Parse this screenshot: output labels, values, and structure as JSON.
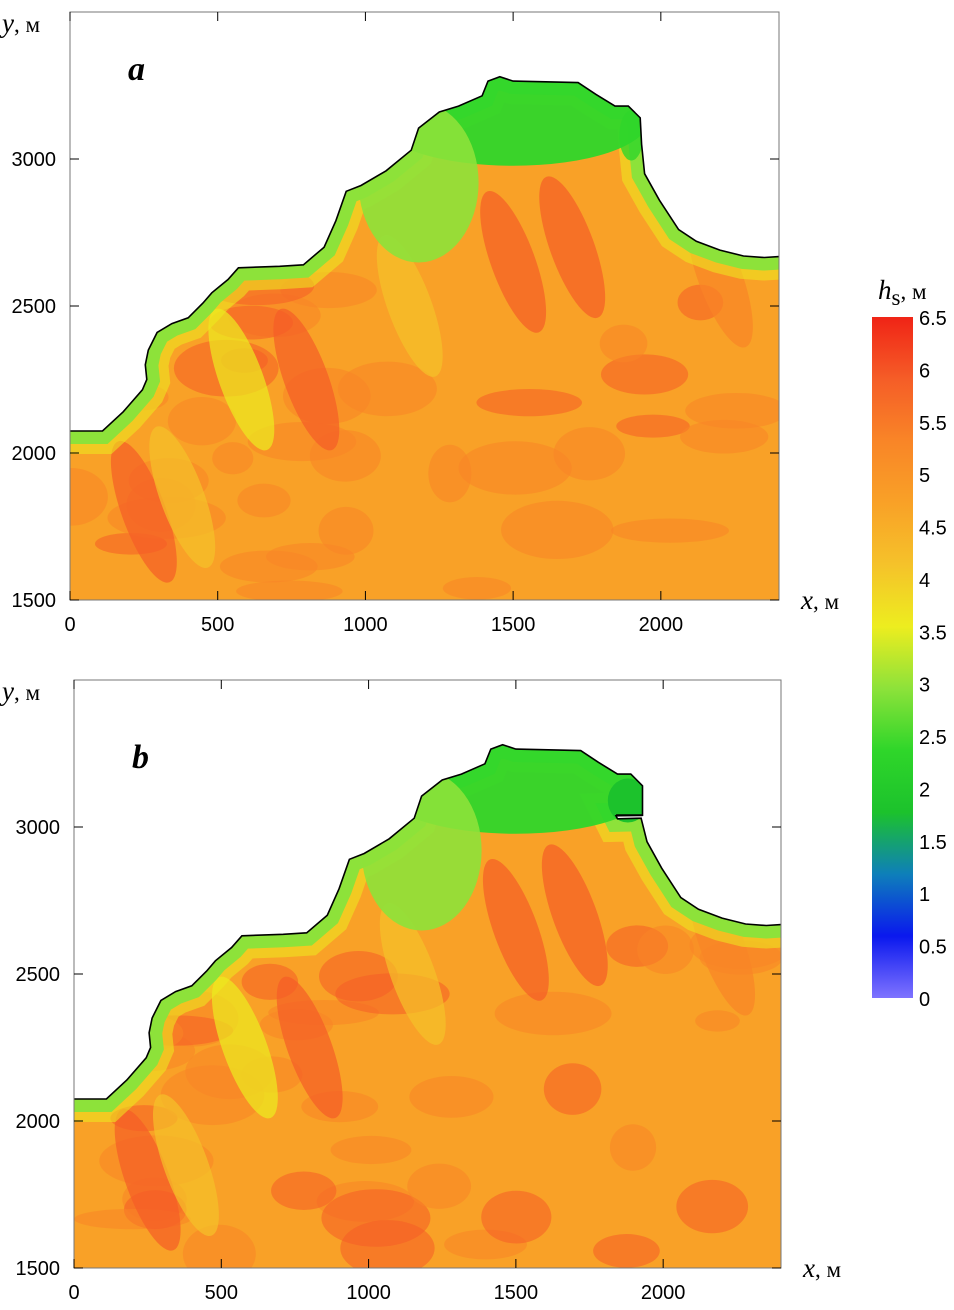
{
  "colors": {
    "scale": [
      "#7f73ff",
      "#0a18ee",
      "#0e7fba",
      "#1cc22c",
      "#2fd62a",
      "#8de23a",
      "#eded1f",
      "#f5c22a",
      "#f9a127",
      "#f98527",
      "#f55d27",
      "#f02416"
    ]
  },
  "chart_data": [
    {
      "type": "heatmap",
      "panel_label": "a",
      "xlabel": "x",
      "xunit": ", м",
      "ylabel": "y",
      "yunit": ", м",
      "xlim": [
        0,
        2400
      ],
      "ylim": [
        1500,
        3500
      ],
      "xticks": [
        "0",
        "500",
        "1000",
        "1500",
        "2000"
      ],
      "yticks": [
        "1500",
        "2000",
        "2500",
        "3000"
      ],
      "coastline": [
        [
          0,
          2075
        ],
        [
          110,
          2075
        ],
        [
          180,
          2140
        ],
        [
          245,
          2215
        ],
        [
          260,
          2250
        ],
        [
          255,
          2300
        ],
        [
          265,
          2350
        ],
        [
          295,
          2410
        ],
        [
          345,
          2440
        ],
        [
          400,
          2460
        ],
        [
          450,
          2510
        ],
        [
          480,
          2545
        ],
        [
          535,
          2590
        ],
        [
          570,
          2630
        ],
        [
          710,
          2635
        ],
        [
          790,
          2640
        ],
        [
          860,
          2700
        ],
        [
          900,
          2790
        ],
        [
          935,
          2890
        ],
        [
          985,
          2910
        ],
        [
          1070,
          2960
        ],
        [
          1155,
          3030
        ],
        [
          1180,
          3105
        ],
        [
          1250,
          3160
        ],
        [
          1315,
          3180
        ],
        [
          1395,
          3215
        ],
        [
          1415,
          3265
        ],
        [
          1455,
          3280
        ],
        [
          1500,
          3265
        ],
        [
          1720,
          3260
        ],
        [
          1780,
          3220
        ],
        [
          1845,
          3180
        ],
        [
          1890,
          3180
        ],
        [
          1930,
          3140
        ],
        [
          1935,
          3050
        ],
        [
          1945,
          2950
        ],
        [
          1995,
          2860
        ],
        [
          2060,
          2760
        ],
        [
          2120,
          2720
        ],
        [
          2200,
          2690
        ],
        [
          2280,
          2670
        ],
        [
          2350,
          2665
        ],
        [
          2400,
          2668
        ]
      ],
      "field_extent_hs": [
        2,
        6.3
      ]
    },
    {
      "type": "heatmap",
      "panel_label": "b",
      "xlabel": "x",
      "xunit": ", м",
      "ylabel": "y",
      "yunit": ", м",
      "xlim": [
        0,
        2400
      ],
      "ylim": [
        1500,
        3500
      ],
      "xticks": [
        "0",
        "500",
        "1000",
        "1500",
        "2000"
      ],
      "yticks": [
        "1500",
        "2000",
        "2500",
        "3000"
      ],
      "coastline": [
        [
          0,
          2075
        ],
        [
          110,
          2075
        ],
        [
          180,
          2140
        ],
        [
          245,
          2215
        ],
        [
          260,
          2250
        ],
        [
          255,
          2300
        ],
        [
          265,
          2350
        ],
        [
          295,
          2410
        ],
        [
          345,
          2440
        ],
        [
          400,
          2460
        ],
        [
          450,
          2510
        ],
        [
          480,
          2545
        ],
        [
          535,
          2590
        ],
        [
          570,
          2630
        ],
        [
          710,
          2635
        ],
        [
          790,
          2640
        ],
        [
          860,
          2700
        ],
        [
          900,
          2790
        ],
        [
          935,
          2890
        ],
        [
          985,
          2910
        ],
        [
          1070,
          2960
        ],
        [
          1155,
          3030
        ],
        [
          1180,
          3105
        ],
        [
          1250,
          3160
        ],
        [
          1315,
          3180
        ],
        [
          1395,
          3215
        ],
        [
          1415,
          3265
        ],
        [
          1455,
          3280
        ],
        [
          1500,
          3265
        ],
        [
          1720,
          3260
        ],
        [
          1780,
          3220
        ],
        [
          1845,
          3180
        ],
        [
          1890,
          3180
        ],
        [
          1930,
          3140
        ],
        [
          1930,
          3040
        ],
        [
          1840,
          3038
        ],
        [
          1845,
          3028
        ],
        [
          1925,
          3030
        ],
        [
          1945,
          2950
        ],
        [
          1995,
          2860
        ],
        [
          2060,
          2760
        ],
        [
          2120,
          2720
        ],
        [
          2200,
          2690
        ],
        [
          2280,
          2670
        ],
        [
          2350,
          2665
        ],
        [
          2400,
          2668
        ]
      ],
      "breakwater": [
        [
          1840,
          3040
        ],
        [
          1930,
          3040
        ]
      ],
      "field_extent_hs": [
        1.4,
        6.3
      ]
    }
  ],
  "colorbar": {
    "label": "h",
    "label_sub": "s",
    "unit": ", м",
    "min": 0,
    "max": 6.5,
    "ticks": [
      "6.5",
      "6",
      "5.5",
      "5",
      "4.5",
      "4",
      "3.5",
      "3",
      "2.5",
      "2",
      "1.5",
      "1",
      "0.5",
      "0"
    ]
  }
}
